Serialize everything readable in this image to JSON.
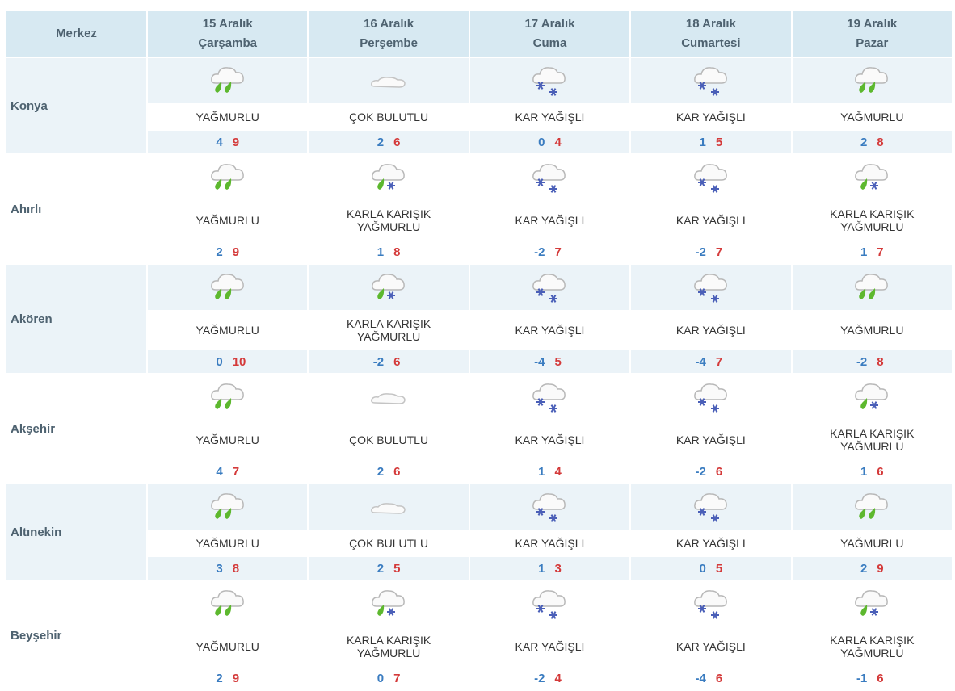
{
  "header": {
    "station": "Merkez",
    "days": [
      {
        "date": "15 Aralık",
        "weekday": "Çarşamba"
      },
      {
        "date": "16 Aralık",
        "weekday": "Perşembe"
      },
      {
        "date": "17 Aralık",
        "weekday": "Cuma"
      },
      {
        "date": "18 Aralık",
        "weekday": "Cumartesi"
      },
      {
        "date": "19 Aralık",
        "weekday": "Pazar"
      }
    ]
  },
  "rows": [
    {
      "name": "Konya",
      "cells": [
        {
          "condition": "YAĞMURLU",
          "min": 4,
          "max": 9
        },
        {
          "condition": "ÇOK BULUTLU",
          "min": 2,
          "max": 6
        },
        {
          "condition": "KAR YAĞIŞLI",
          "min": 0,
          "max": 4
        },
        {
          "condition": "KAR YAĞIŞLI",
          "min": 1,
          "max": 5
        },
        {
          "condition": "YAĞMURLU",
          "min": 2,
          "max": 8
        }
      ]
    },
    {
      "name": "Ahırlı",
      "cells": [
        {
          "condition": "YAĞMURLU",
          "min": 2,
          "max": 9
        },
        {
          "condition": "KARLA KARIŞIK YAĞMURLU",
          "min": 1,
          "max": 8
        },
        {
          "condition": "KAR YAĞIŞLI",
          "min": -2,
          "max": 7
        },
        {
          "condition": "KAR YAĞIŞLI",
          "min": -2,
          "max": 7
        },
        {
          "condition": "KARLA KARIŞIK YAĞMURLU",
          "min": 1,
          "max": 7
        }
      ]
    },
    {
      "name": "Akören",
      "cells": [
        {
          "condition": "YAĞMURLU",
          "min": 0,
          "max": 10
        },
        {
          "condition": "KARLA KARIŞIK YAĞMURLU",
          "min": -2,
          "max": 6
        },
        {
          "condition": "KAR YAĞIŞLI",
          "min": -4,
          "max": 5
        },
        {
          "condition": "KAR YAĞIŞLI",
          "min": -4,
          "max": 7
        },
        {
          "condition": "YAĞMURLU",
          "min": -2,
          "max": 8
        }
      ]
    },
    {
      "name": "Akşehir",
      "cells": [
        {
          "condition": "YAĞMURLU",
          "min": 4,
          "max": 7
        },
        {
          "condition": "ÇOK BULUTLU",
          "min": 2,
          "max": 6
        },
        {
          "condition": "KAR YAĞIŞLI",
          "min": 1,
          "max": 4
        },
        {
          "condition": "KAR YAĞIŞLI",
          "min": -2,
          "max": 6
        },
        {
          "condition": "KARLA KARIŞIK YAĞMURLU",
          "min": 1,
          "max": 6
        }
      ]
    },
    {
      "name": "Altınekin",
      "cells": [
        {
          "condition": "YAĞMURLU",
          "min": 3,
          "max": 8
        },
        {
          "condition": "ÇOK BULUTLU",
          "min": 2,
          "max": 5
        },
        {
          "condition": "KAR YAĞIŞLI",
          "min": 1,
          "max": 3
        },
        {
          "condition": "KAR YAĞIŞLI",
          "min": 0,
          "max": 5
        },
        {
          "condition": "YAĞMURLU",
          "min": 2,
          "max": 9
        }
      ]
    },
    {
      "name": "Beyşehir",
      "cells": [
        {
          "condition": "YAĞMURLU",
          "min": 2,
          "max": 9
        },
        {
          "condition": "KARLA KARIŞIK YAĞMURLU",
          "min": 0,
          "max": 7
        },
        {
          "condition": "KAR YAĞIŞLI",
          "min": -2,
          "max": 4
        },
        {
          "condition": "KAR YAĞIŞLI",
          "min": -4,
          "max": 6
        },
        {
          "condition": "KARLA KARIŞIK YAĞMURLU",
          "min": -1,
          "max": 6
        }
      ]
    }
  ]
}
